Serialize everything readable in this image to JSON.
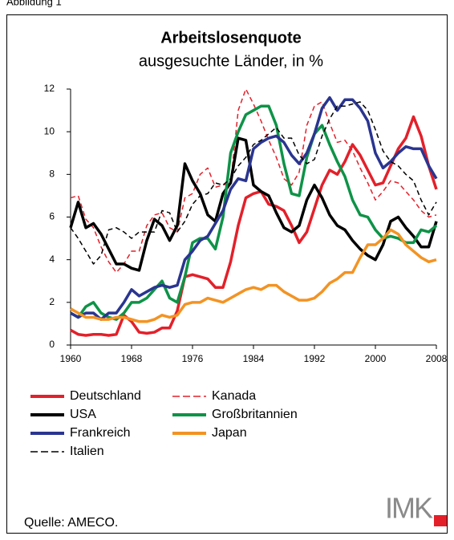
{
  "figure_label": "Abbildung 1",
  "source": "Quelle: AMECO.",
  "logo": "IMK",
  "chart_data": {
    "type": "line",
    "title": "Arbeitslosenquote",
    "subtitle": "ausgesuchte Länder, in %",
    "x": [
      1960,
      1961,
      1962,
      1963,
      1964,
      1965,
      1966,
      1967,
      1968,
      1969,
      1970,
      1971,
      1972,
      1973,
      1974,
      1975,
      1976,
      1977,
      1978,
      1979,
      1980,
      1981,
      1982,
      1983,
      1984,
      1985,
      1986,
      1987,
      1988,
      1989,
      1990,
      1991,
      1992,
      1993,
      1994,
      1995,
      1996,
      1997,
      1998,
      1999,
      2000,
      2001,
      2002,
      2003,
      2004,
      2005,
      2006,
      2007,
      2008
    ],
    "xlim": [
      1960,
      2008
    ],
    "xticks": [
      1960,
      1968,
      1976,
      1984,
      1992,
      2000,
      2008
    ],
    "ylim": [
      0,
      12
    ],
    "yticks": [
      0,
      2,
      4,
      6,
      8,
      10,
      12
    ],
    "series": [
      {
        "name": "Deutschland",
        "color": "#e3202a",
        "dashed": false,
        "values": [
          0.7,
          0.5,
          0.45,
          0.5,
          0.5,
          0.45,
          0.5,
          1.4,
          1.1,
          0.6,
          0.55,
          0.6,
          0.8,
          0.8,
          1.6,
          3.2,
          3.3,
          3.2,
          3.1,
          2.7,
          2.7,
          3.9,
          5.6,
          6.9,
          7.1,
          7.2,
          6.6,
          6.5,
          6.3,
          5.6,
          4.8,
          5.3,
          6.4,
          7.5,
          8.2,
          8.0,
          8.6,
          9.4,
          8.9,
          8.2,
          7.5,
          7.6,
          8.4,
          9.2,
          9.7,
          10.7,
          9.8,
          8.4,
          7.3
        ]
      },
      {
        "name": "Kanada",
        "color": "#e3202a",
        "dashed": true,
        "values": [
          6.9,
          7.0,
          5.9,
          5.5,
          4.6,
          3.9,
          3.4,
          3.8,
          4.4,
          4.4,
          5.6,
          6.1,
          6.2,
          5.5,
          5.3,
          6.9,
          7.1,
          8.0,
          8.3,
          7.4,
          7.5,
          7.6,
          11.0,
          12.0,
          11.3,
          10.5,
          9.6,
          8.8,
          7.8,
          7.5,
          8.1,
          10.3,
          11.2,
          11.4,
          10.4,
          9.5,
          9.6,
          9.1,
          8.3,
          7.6,
          6.8,
          7.2,
          7.7,
          7.6,
          7.2,
          6.8,
          6.3,
          6.0,
          6.1
        ]
      },
      {
        "name": "USA",
        "color": "#000000",
        "dashed": false,
        "values": [
          5.5,
          6.7,
          5.5,
          5.7,
          5.2,
          4.5,
          3.8,
          3.8,
          3.6,
          3.5,
          4.9,
          5.9,
          5.6,
          4.9,
          5.6,
          8.5,
          7.7,
          7.1,
          6.1,
          5.8,
          7.1,
          7.6,
          9.7,
          9.6,
          7.5,
          7.2,
          7.0,
          6.2,
          5.5,
          5.3,
          5.6,
          6.8,
          7.5,
          6.9,
          6.1,
          5.6,
          5.4,
          4.9,
          4.5,
          4.2,
          4.0,
          4.7,
          5.8,
          6.0,
          5.5,
          5.1,
          4.6,
          4.6,
          5.8
        ]
      },
      {
        "name": "Großbritannien",
        "color": "#0e9347",
        "dashed": false,
        "values": [
          1.5,
          1.3,
          1.8,
          2.0,
          1.5,
          1.3,
          1.2,
          1.5,
          2.0,
          2.0,
          2.2,
          2.6,
          3.0,
          2.2,
          2.0,
          3.2,
          4.8,
          5.0,
          5.0,
          4.5,
          6.0,
          9.0,
          10.0,
          10.8,
          11.0,
          11.2,
          11.2,
          10.3,
          8.5,
          7.1,
          7.0,
          8.8,
          9.9,
          10.3,
          9.4,
          8.6,
          7.9,
          6.8,
          6.1,
          6.0,
          5.4,
          5.0,
          5.1,
          5.0,
          4.8,
          4.8,
          5.4,
          5.3,
          5.6
        ]
      },
      {
        "name": "Frankreich",
        "color": "#2a3590",
        "dashed": false,
        "values": [
          1.5,
          1.3,
          1.5,
          1.5,
          1.2,
          1.5,
          1.5,
          2.0,
          2.6,
          2.3,
          2.5,
          2.7,
          2.8,
          2.7,
          2.8,
          4.0,
          4.4,
          4.9,
          5.1,
          5.7,
          6.3,
          7.3,
          7.8,
          7.7,
          9.2,
          9.5,
          9.7,
          9.8,
          9.5,
          8.9,
          8.5,
          9.0,
          9.9,
          11.1,
          11.6,
          11.0,
          11.5,
          11.5,
          11.1,
          10.5,
          9.0,
          8.3,
          8.6,
          9.0,
          9.3,
          9.2,
          9.2,
          8.4,
          7.8
        ]
      },
      {
        "name": "Japan",
        "color": "#f39323",
        "dashed": false,
        "values": [
          1.7,
          1.5,
          1.3,
          1.3,
          1.2,
          1.2,
          1.3,
          1.3,
          1.2,
          1.1,
          1.1,
          1.2,
          1.4,
          1.3,
          1.4,
          1.9,
          2.0,
          2.0,
          2.2,
          2.1,
          2.0,
          2.2,
          2.4,
          2.6,
          2.7,
          2.6,
          2.8,
          2.8,
          2.5,
          2.3,
          2.1,
          2.1,
          2.2,
          2.5,
          2.9,
          3.1,
          3.4,
          3.4,
          4.1,
          4.7,
          4.7,
          5.0,
          5.4,
          5.2,
          4.7,
          4.4,
          4.1,
          3.9,
          4.0
        ]
      },
      {
        "name": "Italien",
        "color": "#000000",
        "dashed": true,
        "values": [
          5.5,
          5.0,
          4.4,
          3.8,
          4.2,
          5.4,
          5.5,
          5.3,
          5.0,
          5.3,
          5.3,
          5.3,
          6.3,
          6.2,
          5.3,
          5.8,
          6.6,
          7.0,
          7.1,
          7.6,
          7.5,
          7.8,
          8.4,
          8.8,
          9.4,
          9.6,
          9.9,
          10.2,
          9.7,
          9.7,
          8.9,
          8.5,
          8.7,
          9.8,
          10.6,
          11.2,
          11.2,
          11.3,
          11.4,
          11.0,
          10.1,
          9.1,
          8.6,
          8.4,
          8.0,
          7.7,
          6.8,
          6.1,
          6.7
        ]
      }
    ]
  }
}
